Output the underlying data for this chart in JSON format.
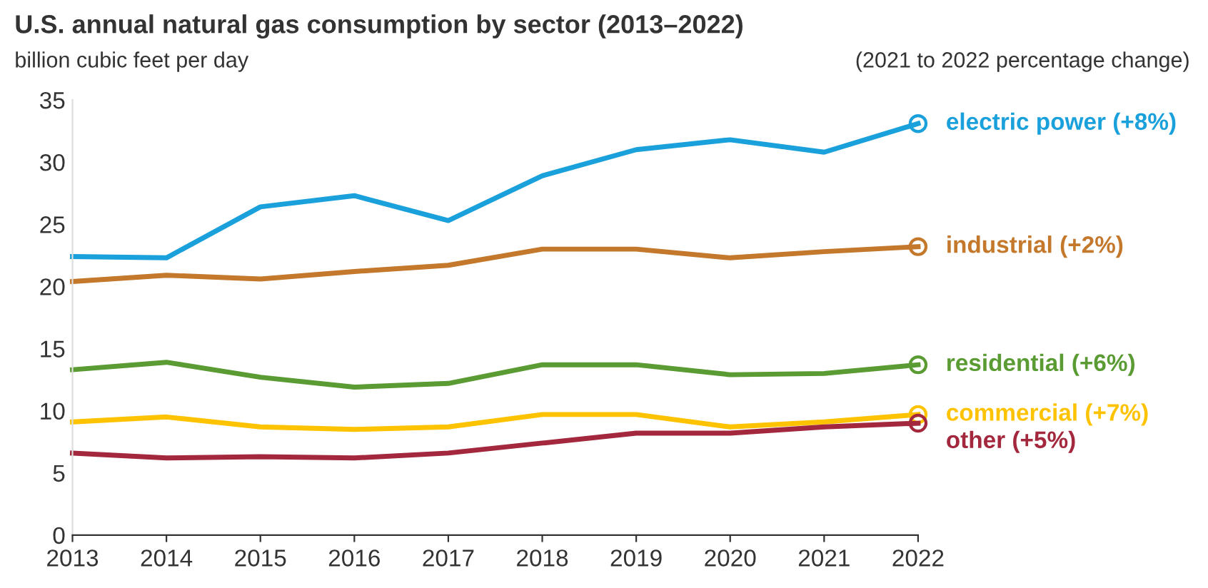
{
  "chart_data": {
    "type": "line",
    "title": "U.S. annual natural gas consumption by sector (2013–2022)",
    "ylabel": "billion cubic feet per day",
    "annotations": [
      "(2021 to 2022 percentage change)"
    ],
    "x": [
      2013,
      2014,
      2015,
      2016,
      2017,
      2018,
      2019,
      2020,
      2021,
      2022
    ],
    "xlim": [
      2013,
      2022
    ],
    "xticks": [
      2013,
      2014,
      2015,
      2016,
      2017,
      2018,
      2019,
      2020,
      2021,
      2022
    ],
    "ylim": [
      0,
      35
    ],
    "yticks": [
      0,
      5,
      10,
      15,
      20,
      25,
      30,
      35
    ],
    "grid": false,
    "legend": false,
    "line_style": "solid",
    "series": [
      {
        "name": "electric power (+8%)",
        "color": "#1aa0db",
        "values": [
          22.4,
          22.3,
          26.4,
          27.3,
          25.3,
          28.9,
          31.0,
          31.8,
          30.8,
          33.1
        ]
      },
      {
        "name": "industrial (+2%)",
        "color": "#c3782b",
        "values": [
          20.4,
          20.9,
          20.6,
          21.2,
          21.7,
          23.0,
          23.0,
          22.3,
          22.8,
          23.2
        ]
      },
      {
        "name": "residential (+6%)",
        "color": "#5a9c33",
        "values": [
          13.3,
          13.9,
          12.7,
          11.9,
          12.2,
          13.7,
          13.7,
          12.9,
          13.0,
          13.7
        ]
      },
      {
        "name": "commercial (+7%)",
        "color": "#fdc300",
        "values": [
          9.1,
          9.5,
          8.7,
          8.5,
          8.7,
          9.7,
          9.7,
          8.7,
          9.1,
          9.7
        ]
      },
      {
        "name": "other (+5%)",
        "color": "#a3283e",
        "values": [
          6.6,
          6.2,
          6.3,
          6.2,
          6.6,
          7.4,
          8.2,
          8.2,
          8.7,
          9.0
        ]
      }
    ]
  }
}
